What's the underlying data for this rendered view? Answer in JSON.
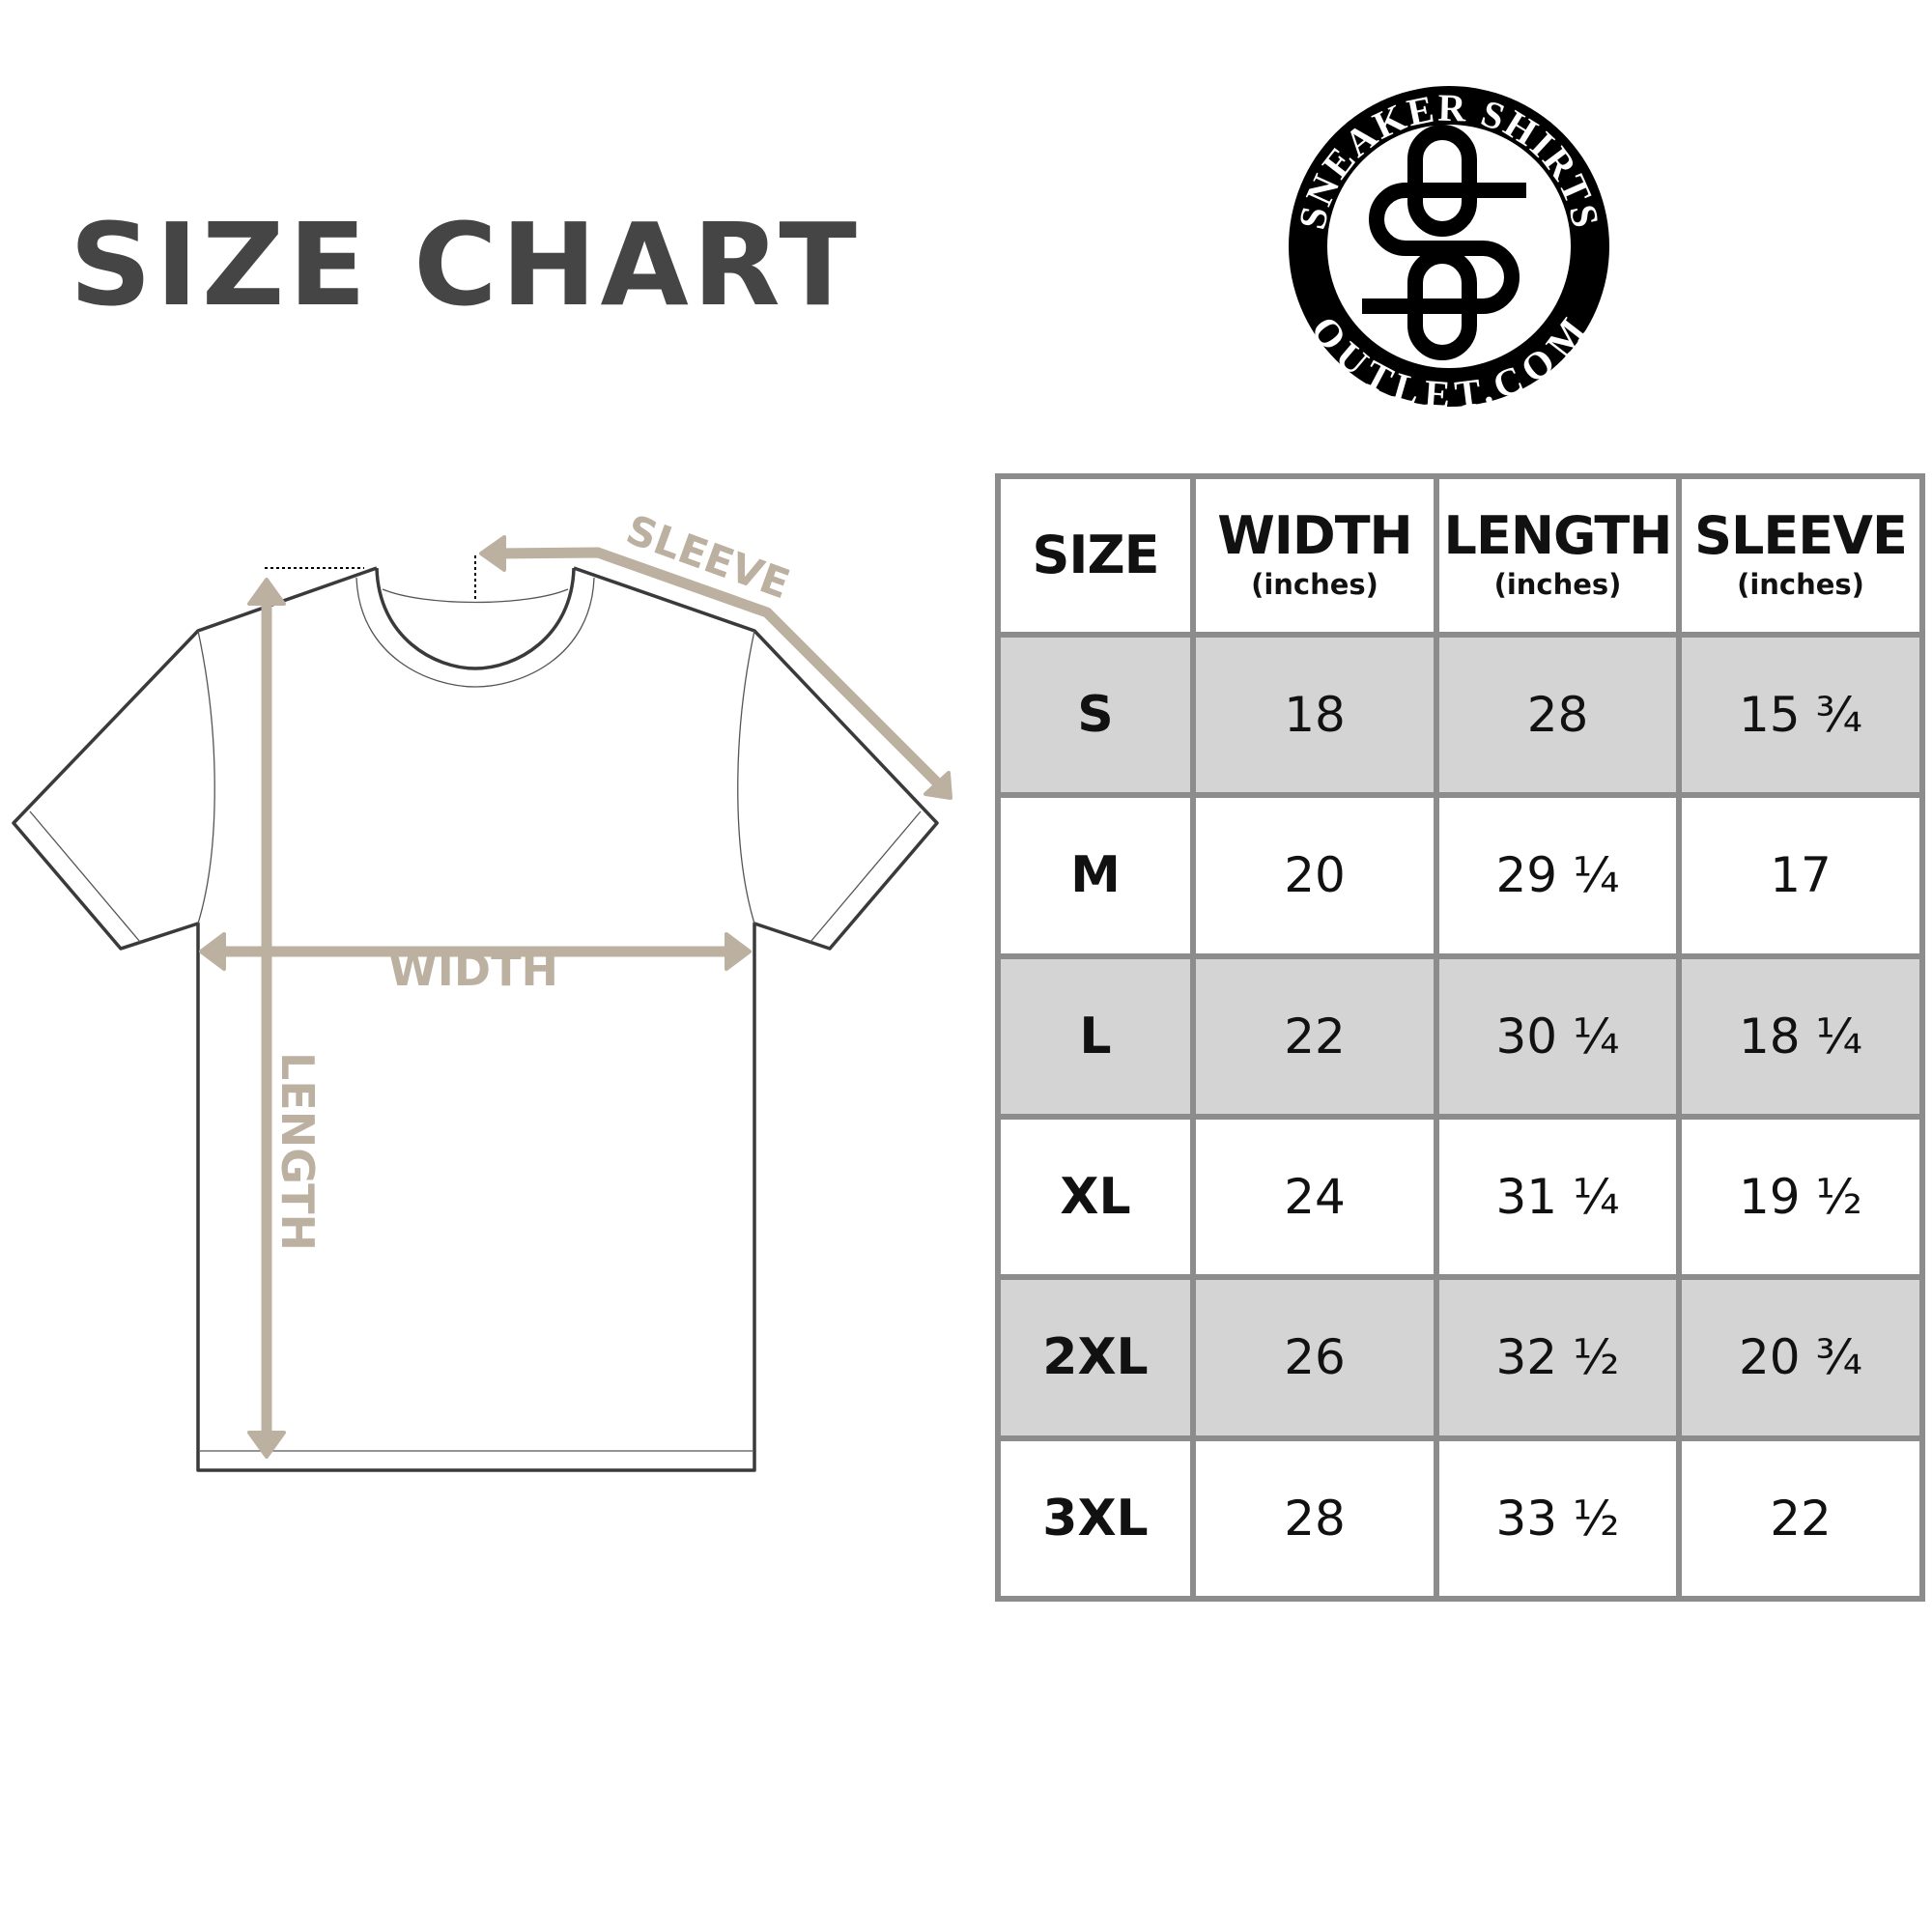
{
  "title": "SIZE CHART",
  "logo": {
    "top_text": "SNEAKER SHIRTS",
    "bottom_text": "OUTLET.COM",
    "monogram": "SO"
  },
  "diagram": {
    "labels": {
      "sleeve": "SLEEVE",
      "width": "WIDTH",
      "length": "LENGTH"
    },
    "accent_color": "#bcb0a0",
    "outline_color": "#3a3a3a"
  },
  "table": {
    "headers": [
      {
        "main": "SIZE",
        "sub": ""
      },
      {
        "main": "WIDTH",
        "sub": "(inches)"
      },
      {
        "main": "LENGTH",
        "sub": "(inches)"
      },
      {
        "main": "SLEEVE",
        "sub": "(inches)"
      }
    ],
    "rows": [
      {
        "size": "S",
        "width": "18",
        "length": "28",
        "sleeve": "15 ¾"
      },
      {
        "size": "M",
        "width": "20",
        "length": "29 ¼",
        "sleeve": "17"
      },
      {
        "size": "L",
        "width": "22",
        "length": "30 ¼",
        "sleeve": "18 ¼"
      },
      {
        "size": "XL",
        "width": "24",
        "length": "31 ¼",
        "sleeve": "19 ½"
      },
      {
        "size": "2XL",
        "width": "26",
        "length": "32 ½",
        "sleeve": "20 ¾"
      },
      {
        "size": "3XL",
        "width": "28",
        "length": "33 ½",
        "sleeve": "22"
      }
    ],
    "shade_color": "#d4d4d4",
    "border_color": "#8c8c8c"
  }
}
